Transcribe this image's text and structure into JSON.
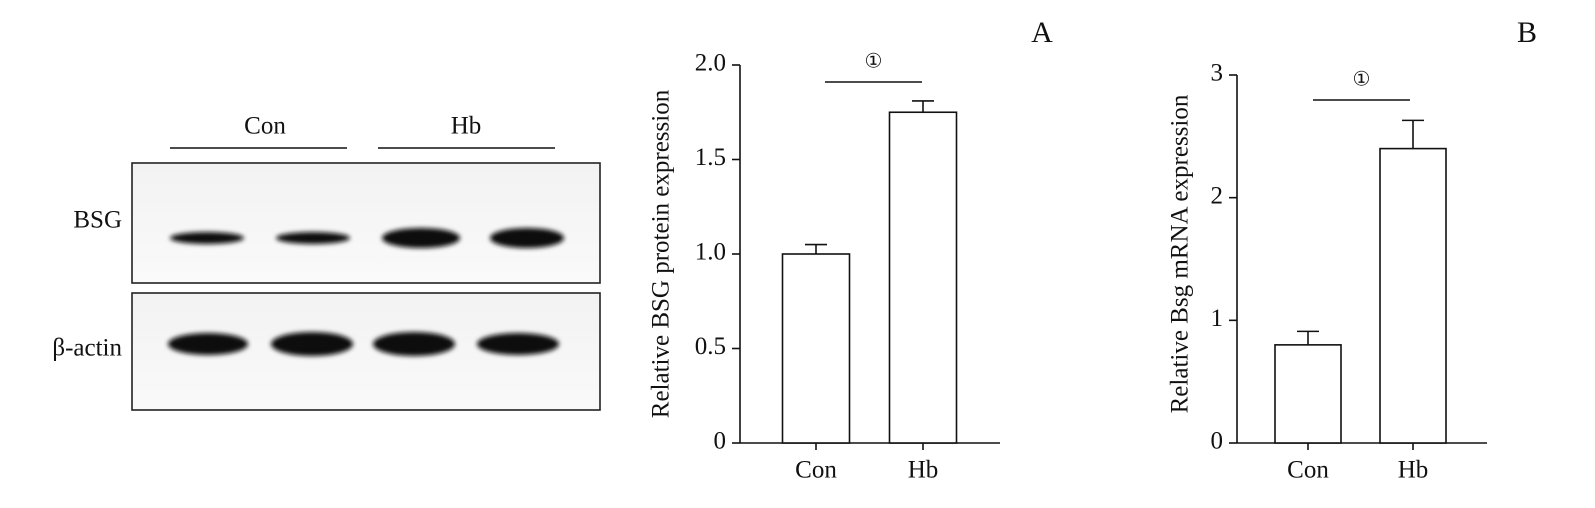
{
  "blot": {
    "groups": [
      "Con",
      "Hb"
    ],
    "rows": [
      "BSG",
      "β-actin"
    ]
  },
  "chart_data": [
    {
      "type": "bar",
      "panel": "A",
      "y_label": "Relative BSG protein expression",
      "categories": [
        "Con",
        "Hb"
      ],
      "values": [
        1.0,
        1.75
      ],
      "errors": [
        0.05,
        0.06
      ],
      "color": "#ffffff",
      "ylim": [
        0,
        2
      ],
      "yticks": [
        0,
        0.5,
        {
          "value": 1,
          "label": "1.0"
        },
        1.5,
        {
          "value": 2,
          "label": "2.0"
        }
      ],
      "significance": "①"
    },
    {
      "type": "bar",
      "panel": "B",
      "y_label": "Relative Bsg mRNA expression",
      "categories": [
        "Con",
        "Hb"
      ],
      "values": [
        0.8,
        2.4
      ],
      "errors": [
        0.11,
        0.23
      ],
      "color": "#ffffff",
      "ylim": [
        0,
        3
      ],
      "yticks": [
        0,
        1,
        2,
        3
      ],
      "significance": "①"
    }
  ]
}
